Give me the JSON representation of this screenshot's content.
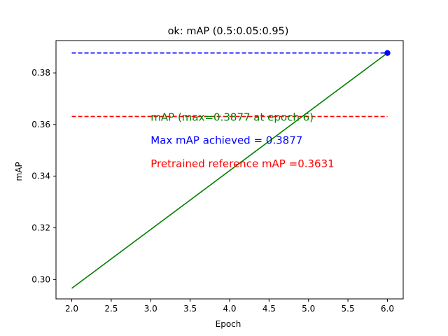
{
  "chart_data": {
    "type": "line",
    "title": "ok:  mAP (0.5:0.05:0.95)",
    "xlabel": "Epoch",
    "ylabel": "mAP",
    "xlim": [
      1.8,
      6.2
    ],
    "ylim": [
      0.2925,
      0.3925
    ],
    "x_ticks": [
      2.0,
      2.5,
      3.0,
      3.5,
      4.0,
      4.5,
      5.0,
      5.5,
      6.0
    ],
    "x_tick_labels": [
      "2.0",
      "2.5",
      "3.0",
      "3.5",
      "4.0",
      "4.5",
      "5.0",
      "5.5",
      "6.0"
    ],
    "y_ticks": [
      0.3,
      0.32,
      0.34,
      0.36,
      0.38
    ],
    "y_tick_labels": [
      "0.30",
      "0.32",
      "0.34",
      "0.36",
      "0.38"
    ],
    "grid": false,
    "series": [
      {
        "x": [
          2,
          6
        ],
        "values": [
          0.2966,
          0.3877
        ],
        "color": "#008000"
      }
    ],
    "max_point": {
      "x": 6,
      "y": 0.3877,
      "color": "#0000ff"
    },
    "hlines": [
      {
        "y": 0.3877,
        "x_range": [
          2,
          6
        ],
        "color": "#0000ff",
        "style": "dashed"
      },
      {
        "y": 0.3631,
        "x_range": [
          2,
          6
        ],
        "color": "#ff0000",
        "style": "dashed"
      }
    ],
    "annotations": [
      {
        "text": "mAP (max=0.3877 at epoch 6)",
        "x": 3.0,
        "y": 0.3615,
        "color": "#008000"
      },
      {
        "text": "Max mAP achieved = 0.3877",
        "x": 3.0,
        "y": 0.3525,
        "color": "#0000ff"
      },
      {
        "text": "Pretrained reference mAP =0.3631",
        "x": 3.0,
        "y": 0.3435,
        "color": "#ff0000"
      }
    ]
  }
}
